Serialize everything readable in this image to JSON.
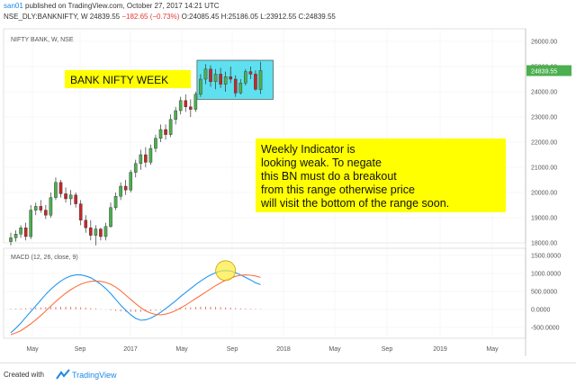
{
  "header": {
    "user": "san01",
    "published": "published on TradingView.com, October 27, 2017 14:21 UTC",
    "symbol_line_a": "NSE_DLY:BANKNIFTY, W  24839.55 ",
    "change": "−182.65 (−0.73%)",
    "symbol_line_b": " O:24085.45 H:25186.05 L:23912.55 C:24839.55"
  },
  "footer": {
    "created": "Created with",
    "brand": "TradingView"
  },
  "colors": {
    "up": "#4caf50",
    "down": "#c62828",
    "macd": "#2196f3",
    "signal": "#ff7043",
    "hist": "#e57373",
    "box": "#5ee0ef",
    "note": "#ffff00"
  },
  "chart_data": [
    {
      "type": "candlestick",
      "title": "NIFTY BANK, W, NSE",
      "ylim": [
        18000,
        26500
      ],
      "yticks": [
        "26000.00",
        "25000.00",
        "24000.00",
        "23000.00",
        "22000.00",
        "21000.00",
        "20000.00",
        "19000.00",
        "18000.00"
      ],
      "last_price": "24839.55",
      "xticks": [
        "May",
        "Sep",
        "2017",
        "May",
        "Sep",
        "2018",
        "May",
        "Sep",
        "2019",
        "May"
      ],
      "annotations": {
        "label": "BANK NIFTY WEEK",
        "note": [
          "Weekly Indicator is",
          "looking weak. To negate",
          "this BN must do a breakout",
          "from this range otherwise price",
          "will visit the bottom of the range soon."
        ]
      },
      "candles": [
        {
          "o": 18050,
          "h": 18400,
          "l": 17900,
          "c": 18200
        },
        {
          "o": 18200,
          "h": 18500,
          "l": 18050,
          "c": 18350
        },
        {
          "o": 18350,
          "h": 18700,
          "l": 18200,
          "c": 18600
        },
        {
          "o": 18600,
          "h": 18800,
          "l": 18100,
          "c": 18250
        },
        {
          "o": 18250,
          "h": 19500,
          "l": 18150,
          "c": 19300
        },
        {
          "o": 19300,
          "h": 19600,
          "l": 19100,
          "c": 19450
        },
        {
          "o": 19450,
          "h": 19700,
          "l": 19200,
          "c": 19300
        },
        {
          "o": 19300,
          "h": 19500,
          "l": 18950,
          "c": 19100
        },
        {
          "o": 19100,
          "h": 20000,
          "l": 19000,
          "c": 19800
        },
        {
          "o": 19800,
          "h": 20600,
          "l": 19700,
          "c": 20400
        },
        {
          "o": 20400,
          "h": 20500,
          "l": 19800,
          "c": 19950
        },
        {
          "o": 19950,
          "h": 20200,
          "l": 19600,
          "c": 19750
        },
        {
          "o": 19750,
          "h": 20100,
          "l": 19500,
          "c": 19900
        },
        {
          "o": 19900,
          "h": 20000,
          "l": 19400,
          "c": 19550
        },
        {
          "o": 19550,
          "h": 19700,
          "l": 18700,
          "c": 18900
        },
        {
          "o": 18900,
          "h": 19100,
          "l": 18400,
          "c": 18600
        },
        {
          "o": 18600,
          "h": 18900,
          "l": 18100,
          "c": 18300
        },
        {
          "o": 18300,
          "h": 18700,
          "l": 17900,
          "c": 18550
        },
        {
          "o": 18550,
          "h": 18600,
          "l": 18100,
          "c": 18250
        },
        {
          "o": 18250,
          "h": 18800,
          "l": 18100,
          "c": 18650
        },
        {
          "o": 18650,
          "h": 19600,
          "l": 18600,
          "c": 19400
        },
        {
          "o": 19400,
          "h": 20000,
          "l": 19300,
          "c": 19850
        },
        {
          "o": 19850,
          "h": 20400,
          "l": 19700,
          "c": 20250
        },
        {
          "o": 20250,
          "h": 20500,
          "l": 19900,
          "c": 20100
        },
        {
          "o": 20100,
          "h": 20900,
          "l": 20000,
          "c": 20800
        },
        {
          "o": 20800,
          "h": 21300,
          "l": 20600,
          "c": 21150
        },
        {
          "o": 21150,
          "h": 21700,
          "l": 20900,
          "c": 21500
        },
        {
          "o": 21500,
          "h": 21800,
          "l": 21000,
          "c": 21200
        },
        {
          "o": 21200,
          "h": 21900,
          "l": 21100,
          "c": 21750
        },
        {
          "o": 21750,
          "h": 22300,
          "l": 21600,
          "c": 22150
        },
        {
          "o": 22150,
          "h": 22700,
          "l": 22000,
          "c": 22500
        },
        {
          "o": 22500,
          "h": 22700,
          "l": 22100,
          "c": 22300
        },
        {
          "o": 22300,
          "h": 23100,
          "l": 22200,
          "c": 22900
        },
        {
          "o": 22900,
          "h": 23400,
          "l": 22700,
          "c": 23250
        },
        {
          "o": 23250,
          "h": 23800,
          "l": 23100,
          "c": 23650
        },
        {
          "o": 23650,
          "h": 23900,
          "l": 23200,
          "c": 23400
        },
        {
          "o": 23400,
          "h": 23700,
          "l": 23000,
          "c": 23300
        },
        {
          "o": 23300,
          "h": 24000,
          "l": 23200,
          "c": 23900
        },
        {
          "o": 23900,
          "h": 24700,
          "l": 23800,
          "c": 24500
        },
        {
          "o": 24500,
          "h": 25100,
          "l": 24300,
          "c": 24900
        },
        {
          "o": 24900,
          "h": 25050,
          "l": 24200,
          "c": 24400
        },
        {
          "o": 24400,
          "h": 24900,
          "l": 24100,
          "c": 24700
        },
        {
          "o": 24700,
          "h": 24950,
          "l": 24150,
          "c": 24300
        },
        {
          "o": 24300,
          "h": 24800,
          "l": 24000,
          "c": 24600
        },
        {
          "o": 24600,
          "h": 25000,
          "l": 24350,
          "c": 24500
        },
        {
          "o": 24500,
          "h": 24650,
          "l": 23800,
          "c": 23950
        },
        {
          "o": 23950,
          "h": 24500,
          "l": 23900,
          "c": 24350
        },
        {
          "o": 24350,
          "h": 24900,
          "l": 24250,
          "c": 24800
        },
        {
          "o": 24800,
          "h": 25000,
          "l": 24500,
          "c": 24700
        },
        {
          "o": 24700,
          "h": 24850,
          "l": 24050,
          "c": 24100
        },
        {
          "o": 24085,
          "h": 25186,
          "l": 23912,
          "c": 24839
        }
      ],
      "range_box": {
        "from_index": 38,
        "to_index": 50,
        "low": 23700,
        "high": 25250
      }
    },
    {
      "type": "line",
      "title": "MACD (12, 26, close, 9)",
      "ylim": [
        -800,
        1700
      ],
      "yticks": [
        "1500.0000",
        "1000.0000",
        "500.0000",
        "0.0000",
        "-500.0000"
      ],
      "series": [
        {
          "values": [
            -650,
            -520,
            -380,
            -220,
            -60,
            100,
            260,
            420,
            560,
            680,
            790,
            870,
            930,
            960,
            960,
            930,
            880,
            800,
            700,
            580,
            440,
            280,
            120,
            -20,
            -150,
            -250,
            -300,
            -290,
            -240,
            -170,
            -80,
            20,
            130,
            240,
            360,
            470,
            580,
            690,
            790,
            880,
            960,
            1020,
            1070,
            1080,
            1070,
            1020,
            960,
            890,
            820,
            740,
            690
          ]
        },
        {
          "values": [
            -700,
            -650,
            -590,
            -500,
            -400,
            -290,
            -170,
            -40,
            90,
            220,
            340,
            450,
            550,
            630,
            700,
            750,
            780,
            790,
            780,
            750,
            700,
            620,
            520,
            400,
            280,
            160,
            50,
            -40,
            -100,
            -140,
            -150,
            -130,
            -90,
            -30,
            40,
            120,
            210,
            300,
            390,
            480,
            570,
            660,
            740,
            810,
            870,
            920,
            950,
            960,
            950,
            930,
            890
          ]
        }
      ],
      "histogram": [
        60,
        80,
        100,
        130,
        160,
        190,
        220,
        250,
        270,
        280,
        290,
        300,
        290,
        270,
        240,
        200,
        150,
        100,
        40,
        -30,
        -100,
        -160,
        -210,
        -250,
        -270,
        -280,
        -270,
        -230,
        -180,
        -130,
        -80,
        -30,
        20,
        70,
        130,
        190,
        240,
        280,
        300,
        310,
        300,
        280,
        260,
        230,
        190,
        150,
        120,
        90,
        70,
        50,
        40
      ],
      "highlight_index": 43
    }
  ]
}
